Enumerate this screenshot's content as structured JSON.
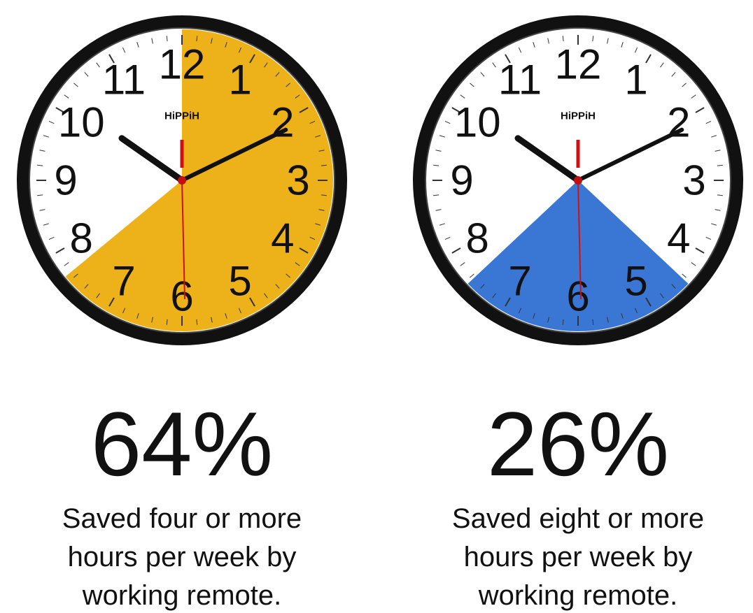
{
  "clock_face": {
    "brand": "HiPPiH",
    "numerals": [
      "12",
      "1",
      "2",
      "3",
      "4",
      "5",
      "6",
      "7",
      "8",
      "9",
      "10",
      "11"
    ]
  },
  "chart_data": [
    {
      "type": "pie",
      "values": [
        64
      ],
      "value_labels": [
        "64%"
      ],
      "color": "#edb11a",
      "annotations": [
        "Saved four or more",
        "hours per week by",
        "working remote."
      ]
    },
    {
      "type": "pie",
      "values": [
        26
      ],
      "value_labels": [
        "26%"
      ],
      "color": "#3a77d4",
      "annotations": [
        "Saved eight or more",
        "hours per week by",
        "working remote."
      ]
    }
  ]
}
